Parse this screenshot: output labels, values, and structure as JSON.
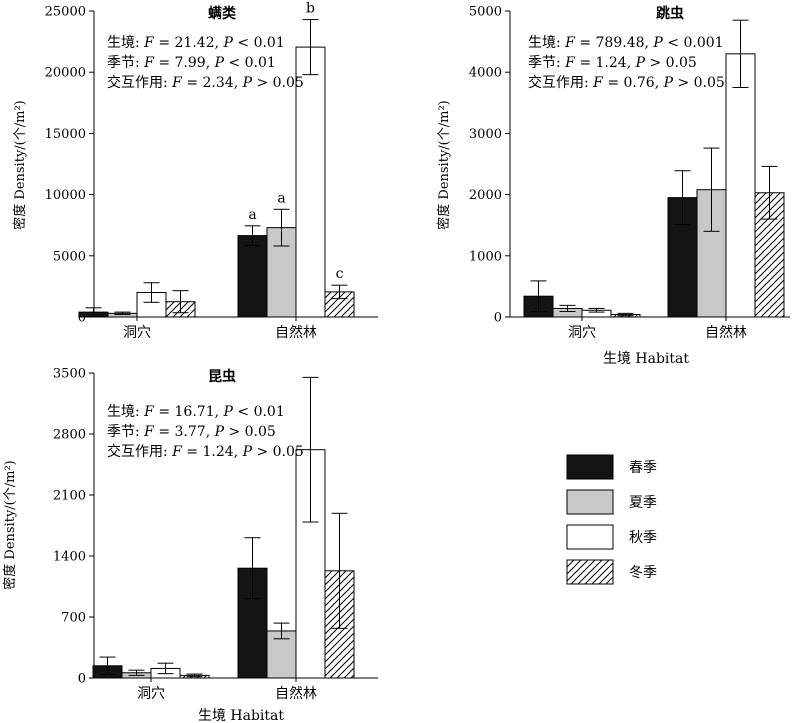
{
  "legend": {
    "items": [
      {
        "label": "春季",
        "fill": "#141414"
      },
      {
        "label": "夏季",
        "fill": "#c8c8c8"
      },
      {
        "label": "秋季",
        "fill": "#ffffff"
      },
      {
        "label": "冬季",
        "fill": "hatch"
      }
    ]
  },
  "chart_data": [
    {
      "type": "bar",
      "title": "螨类",
      "ylabel": "密度 Density/(个/m²)",
      "xlabel": "",
      "categories": [
        "洞穴",
        "自然林"
      ],
      "ylim": [
        0,
        25000
      ],
      "yticks": [
        0,
        5000,
        10000,
        15000,
        20000,
        25000
      ],
      "stats": [
        {
          "label": "生境: ",
          "F": "21.42",
          "op": "<",
          "P": "0.01"
        },
        {
          "label": "季节: ",
          "F": "7.99",
          "op": "<",
          "P": "0.01"
        },
        {
          "label": "交互作用: ",
          "F": "2.34",
          "op": ">",
          "P": "0.05"
        }
      ],
      "series": [
        {
          "name": "春季",
          "values": [
            400,
            6650
          ],
          "errors": [
            350,
            800
          ]
        },
        {
          "name": "夏季",
          "values": [
            300,
            7300
          ],
          "errors": [
            100,
            1500
          ]
        },
        {
          "name": "秋季",
          "values": [
            2000,
            22050
          ],
          "errors": [
            800,
            2250
          ]
        },
        {
          "name": "冬季",
          "values": [
            1250,
            2050
          ],
          "errors": [
            900,
            550
          ]
        }
      ],
      "letters": [
        {
          "cat": 1,
          "series": 0,
          "text": "a"
        },
        {
          "cat": 1,
          "series": 1,
          "text": "a"
        },
        {
          "cat": 1,
          "series": 2,
          "text": "b"
        },
        {
          "cat": 1,
          "series": 3,
          "text": "c"
        }
      ]
    },
    {
      "type": "bar",
      "title": "跳虫",
      "ylabel": "密度 Density/(个/m²)",
      "xlabel": "生境 Habitat",
      "categories": [
        "洞穴",
        "自然林"
      ],
      "ylim": [
        0,
        5000
      ],
      "yticks": [
        0,
        1000,
        2000,
        3000,
        4000,
        5000
      ],
      "stats": [
        {
          "label": "生境: ",
          "F": "789.48",
          "op": "<",
          "P": "0.001"
        },
        {
          "label": "季节: ",
          "F": "1.24",
          "op": ">",
          "P": "0.05"
        },
        {
          "label": "交互作用: ",
          "F": "0.76",
          "op": ">",
          "P": "0.05"
        }
      ],
      "series": [
        {
          "name": "春季",
          "values": [
            340,
            1950
          ],
          "errors": [
            250,
            440
          ]
        },
        {
          "name": "夏季",
          "values": [
            140,
            2080
          ],
          "errors": [
            50,
            680
          ]
        },
        {
          "name": "秋季",
          "values": [
            110,
            4300
          ],
          "errors": [
            30,
            550
          ]
        },
        {
          "name": "冬季",
          "values": [
            40,
            2030
          ],
          "errors": [
            20,
            430
          ]
        }
      ],
      "letters": []
    },
    {
      "type": "bar",
      "title": "昆虫",
      "ylabel": "密度 Density/(个/m²)",
      "xlabel": "生境 Habitat",
      "categories": [
        "洞穴",
        "自然林"
      ],
      "ylim": [
        0,
        3500
      ],
      "yticks": [
        0,
        700,
        1400,
        2100,
        2800,
        3500
      ],
      "stats": [
        {
          "label": "生境: ",
          "F": "16.71",
          "op": "<",
          "P": "0.01"
        },
        {
          "label": "季节: ",
          "F": "3.77",
          "op": ">",
          "P": "0.05"
        },
        {
          "label": "交互作用: ",
          "F": "1.24",
          "op": ">",
          "P": "0.05"
        }
      ],
      "series": [
        {
          "name": "春季",
          "values": [
            140,
            1260
          ],
          "errors": [
            100,
            350
          ]
        },
        {
          "name": "夏季",
          "values": [
            60,
            540
          ],
          "errors": [
            30,
            90
          ]
        },
        {
          "name": "秋季",
          "values": [
            110,
            2620
          ],
          "errors": [
            60,
            830
          ]
        },
        {
          "name": "冬季",
          "values": [
            30,
            1230
          ],
          "errors": [
            15,
            660
          ]
        }
      ],
      "letters": []
    }
  ]
}
